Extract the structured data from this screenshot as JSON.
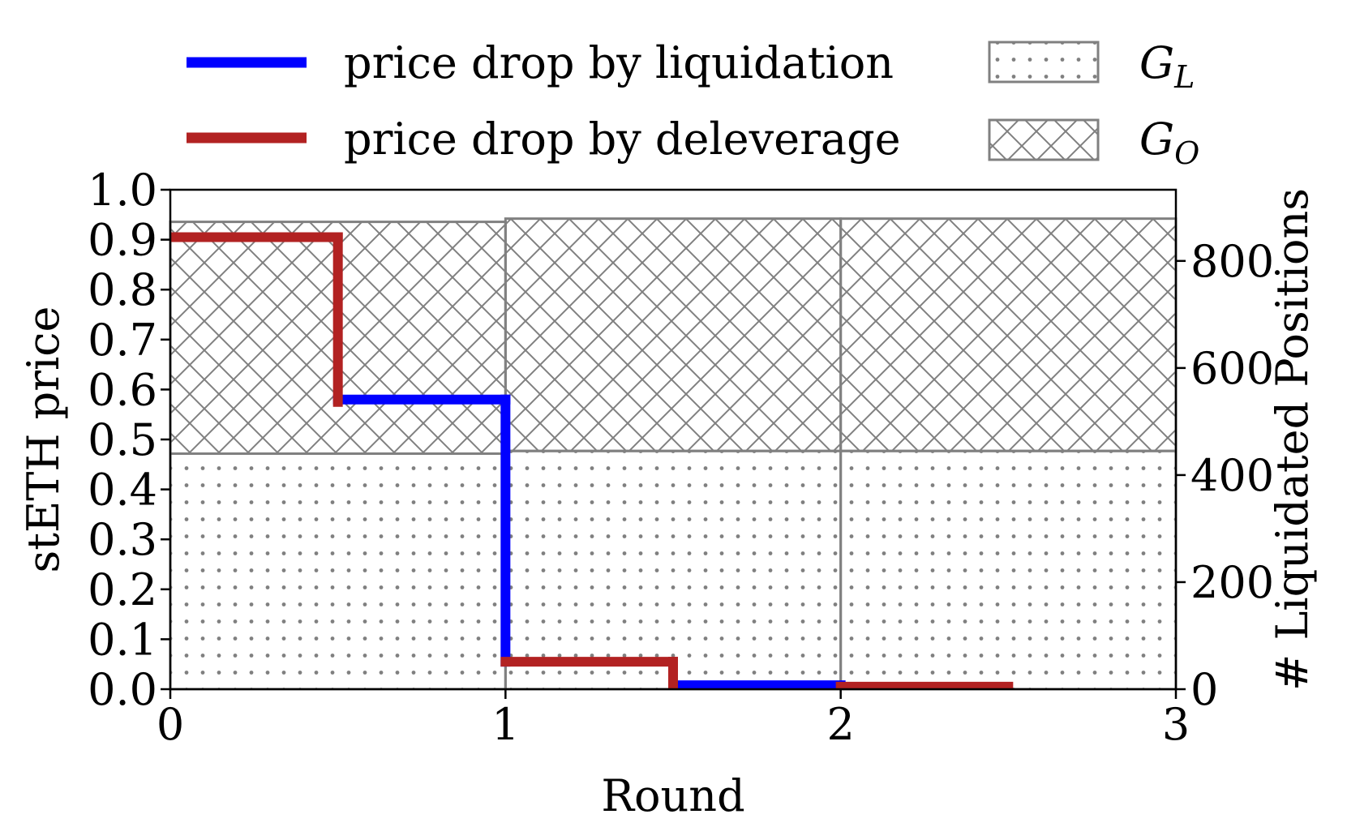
{
  "chart_data": {
    "type": "step+bar",
    "xlabel": "Round",
    "ylabel_left": "stETH price",
    "ylabel_right": "# Liquidated Positions",
    "xlim": [
      0,
      3
    ],
    "ylim_left": [
      0,
      1.0
    ],
    "ylim_right": [
      0,
      933
    ],
    "xticks": [
      {
        "value": 0,
        "label": "0"
      },
      {
        "value": 1,
        "label": "1"
      },
      {
        "value": 2,
        "label": "2"
      },
      {
        "value": 3,
        "label": "3"
      }
    ],
    "yticks_left": [
      {
        "value": 0.0,
        "label": "0.0"
      },
      {
        "value": 0.1,
        "label": "0.1"
      },
      {
        "value": 0.2,
        "label": "0.2"
      },
      {
        "value": 0.3,
        "label": "0.3"
      },
      {
        "value": 0.4,
        "label": "0.4"
      },
      {
        "value": 0.5,
        "label": "0.5"
      },
      {
        "value": 0.6,
        "label": "0.6"
      },
      {
        "value": 0.7,
        "label": "0.7"
      },
      {
        "value": 0.8,
        "label": "0.8"
      },
      {
        "value": 0.9,
        "label": "0.9"
      },
      {
        "value": 1.0,
        "label": "1.0"
      }
    ],
    "yticks_right": [
      {
        "value": 0,
        "label": "0"
      },
      {
        "value": 200,
        "label": "200"
      },
      {
        "value": 400,
        "label": "400"
      },
      {
        "value": 600,
        "label": "600"
      },
      {
        "value": 800,
        "label": "800"
      }
    ],
    "bars": {
      "rounds": [
        0.5,
        1.5,
        2.5
      ],
      "G_L": [
        440,
        445,
        445
      ],
      "G_O": [
        433,
        434,
        434
      ]
    },
    "lines": [
      {
        "name": "price drop by liquidation",
        "color": "#0000ff",
        "segments": [
          {
            "x": [
              0.5,
              1.0
            ],
            "y": [
              0.58,
              0.58
            ]
          },
          {
            "x": [
              1.0,
              1.0
            ],
            "y": [
              0.58,
              0.055
            ]
          },
          {
            "x": [
              1.5,
              2.0
            ],
            "y": [
              0.008,
              0.008
            ]
          }
        ]
      },
      {
        "name": "price drop by deleverage",
        "color": "#b22222",
        "segments": [
          {
            "x": [
              0.0,
              0.5
            ],
            "y": [
              0.905,
              0.905
            ]
          },
          {
            "x": [
              0.5,
              0.5
            ],
            "y": [
              0.905,
              0.575
            ]
          },
          {
            "x": [
              1.0,
              1.5
            ],
            "y": [
              0.055,
              0.055
            ]
          },
          {
            "x": [
              1.5,
              1.5
            ],
            "y": [
              0.055,
              0.008
            ]
          },
          {
            "x": [
              2.0,
              2.5
            ],
            "y": [
              0.005,
              0.005
            ]
          }
        ]
      }
    ],
    "legend": {
      "placement": "top",
      "entries": [
        {
          "key": "liq",
          "label": "price drop by liquidation",
          "kind": "line",
          "color": "#0000ff"
        },
        {
          "key": "del",
          "label": "price drop by deleverage",
          "kind": "line",
          "color": "#b22222"
        },
        {
          "key": "gl",
          "label_main": "G",
          "label_sub": "L",
          "kind": "hatch-dots"
        },
        {
          "key": "go",
          "label_main": "G",
          "label_sub": "O",
          "kind": "hatch-cross"
        }
      ]
    },
    "colors": {
      "bar_edge": "#808080",
      "hatch": "#808080",
      "axis": "#000000"
    }
  }
}
